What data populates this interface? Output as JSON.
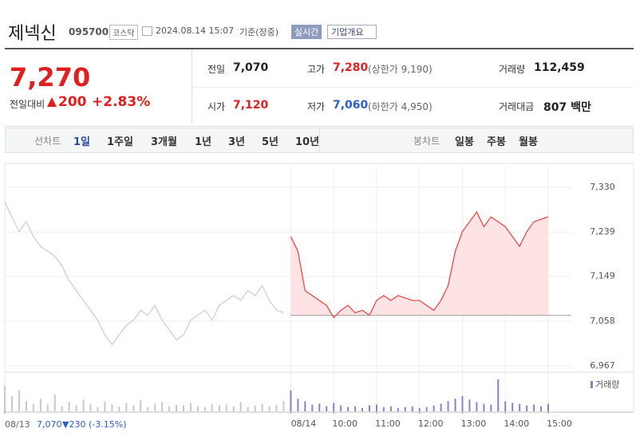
{
  "header": {
    "name": "제넥신",
    "code": "095700",
    "market": "코스닥",
    "datetime": "2024.08.14 15:07",
    "basis": "기준(장중)",
    "badge": "실시간",
    "button": "기업개요"
  },
  "price": {
    "current": "7,270",
    "change_label": "전일대비",
    "change": "200",
    "rate": "+2.83%"
  },
  "stats": [
    {
      "label": "전일",
      "value": "7,070"
    },
    {
      "label": "고가",
      "value": "7,280",
      "extra": "(상한가 9,190)"
    },
    {
      "label": "거래량",
      "value": "112,459"
    },
    {
      "label": "시가",
      "value": "7,120"
    },
    {
      "label": "저가",
      "value": "7,060",
      "extra": "(하한가 4,950)"
    },
    {
      "label": "거래대금",
      "value": "807 백만"
    }
  ],
  "tabs": {
    "line_label": "선차트",
    "line": [
      "1일",
      "1주일",
      "3개월",
      "1년",
      "3년",
      "5년",
      "10년"
    ],
    "candle_label": "봉차트",
    "candle": [
      "일봉",
      "주봉",
      "월봉"
    ]
  },
  "footer": {
    "date": "08/13",
    "close": "7,070",
    "change": "▼230",
    "rate": "(-3.15%)"
  },
  "chart_data": {
    "type": "line",
    "categories": [
      "08/13",
      null,
      null,
      null,
      null,
      null,
      null,
      null,
      null,
      null,
      null,
      null,
      null,
      null,
      null,
      null,
      null,
      null,
      null,
      null,
      null,
      null,
      null,
      null,
      null,
      null,
      null,
      null,
      null,
      null,
      null,
      null,
      null,
      null,
      null,
      null,
      null,
      null,
      null,
      null,
      "08/14",
      null,
      null,
      null,
      null,
      null,
      "10:00",
      null,
      null,
      null,
      null,
      null,
      "11:00",
      null,
      null,
      null,
      null,
      null,
      "12:00",
      null,
      null,
      null,
      null,
      null,
      "13:00",
      null,
      null,
      null,
      null,
      null,
      "14:00",
      null,
      null,
      null,
      null,
      null,
      "15:00"
    ],
    "series": [
      {
        "color": "#cccccc",
        "values": [
          7300,
          7270,
          7240,
          7260,
          7230,
          7210,
          7200,
          7190,
          7170,
          7140,
          7120,
          7100,
          7080,
          7060,
          7030,
          7010,
          7030,
          7050,
          7060,
          7080,
          7070,
          7090,
          7060,
          7040,
          7020,
          7030,
          7060,
          7070,
          7080,
          7060,
          7090,
          7100,
          7110,
          7100,
          7120,
          7110,
          7130,
          7100,
          7080,
          7075,
          null,
          null,
          null,
          null,
          null,
          null,
          null,
          null,
          null,
          null,
          null,
          null,
          null,
          null,
          null,
          null,
          null,
          null,
          null,
          null,
          null,
          null,
          null,
          null,
          null,
          null,
          null,
          null,
          null,
          null,
          null,
          null,
          null,
          null,
          null,
          null,
          null
        ]
      },
      {
        "color": "#f03c3c",
        "values": [
          null,
          null,
          null,
          null,
          null,
          null,
          null,
          null,
          null,
          null,
          null,
          null,
          null,
          null,
          null,
          null,
          null,
          null,
          null,
          null,
          null,
          null,
          null,
          null,
          null,
          null,
          null,
          null,
          null,
          null,
          null,
          null,
          null,
          null,
          null,
          null,
          null,
          null,
          null,
          null,
          7230,
          7200,
          7120,
          7110,
          7100,
          7090,
          7065,
          7080,
          7090,
          7075,
          7080,
          7070,
          7100,
          7110,
          7100,
          7110,
          7105,
          7100,
          7100,
          7090,
          7080,
          7100,
          7130,
          7200,
          7240,
          7260,
          7280,
          7250,
          7270,
          7260,
          7250,
          7230,
          7210,
          7240,
          7260,
          7265,
          7270
        ]
      }
    ],
    "reference": 7070,
    "ylim": [
      6967,
      7330
    ],
    "yticks": [
      {
        "value": 7330,
        "label": "7,330"
      },
      {
        "value": 7239,
        "label": "7,239"
      },
      {
        "value": 7149,
        "label": "7,149"
      },
      {
        "value": 7058,
        "label": "7,058"
      },
      {
        "value": 6967,
        "label": "6,967"
      }
    ],
    "volume_series": [
      {
        "color": "#c8c8c8",
        "values": [
          3000,
          1800,
          2500,
          1200,
          900,
          1500,
          800,
          2000,
          600,
          1100,
          700,
          1400,
          900,
          500,
          1200,
          800,
          600,
          1000,
          700,
          1300,
          500,
          900,
          1100,
          600,
          800,
          700,
          1000,
          600,
          500,
          900,
          700,
          800,
          600,
          1100,
          500,
          700,
          900,
          600,
          800,
          1200,
          null,
          null,
          null,
          null,
          null,
          null,
          null,
          null,
          null,
          null,
          null,
          null,
          null,
          null,
          null,
          null,
          null,
          null,
          null,
          null,
          null,
          null,
          null,
          null,
          null,
          null,
          null,
          null,
          null,
          null,
          null,
          null,
          null,
          null,
          null,
          null,
          null
        ]
      },
      {
        "name": "거래량",
        "color": "#8b7fd0",
        "values": [
          null,
          null,
          null,
          null,
          null,
          null,
          null,
          null,
          null,
          null,
          null,
          null,
          null,
          null,
          null,
          null,
          null,
          null,
          null,
          null,
          null,
          null,
          null,
          null,
          null,
          null,
          null,
          null,
          null,
          null,
          null,
          null,
          null,
          null,
          null,
          null,
          null,
          null,
          null,
          null,
          2500,
          1500,
          1200,
          800,
          900,
          600,
          1000,
          700,
          500,
          600,
          400,
          700,
          800,
          500,
          600,
          400,
          500,
          600,
          400,
          500,
          700,
          900,
          1200,
          1500,
          1800,
          1400,
          1100,
          900,
          800,
          3800,
          1200,
          1000,
          900,
          700,
          800,
          600,
          900
        ]
      }
    ]
  }
}
